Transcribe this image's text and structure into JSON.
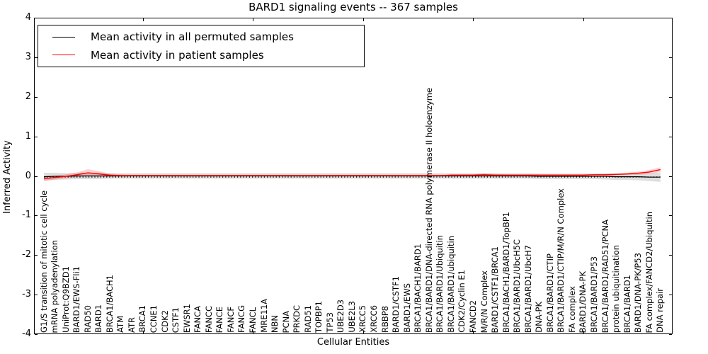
{
  "title": "BARD1 signaling events -- 367 samples",
  "legend": {
    "items": [
      {
        "label": "Mean activity in all permuted samples",
        "color": "#000000"
      },
      {
        "label": "Mean activity in patient samples",
        "color": "#ff0000"
      }
    ]
  },
  "axes": {
    "ylabel": "Inferred Activity",
    "xlabel": "Cellular Entities",
    "yticks": [
      "4",
      "3",
      "2",
      "1",
      "0",
      "-1",
      "-2",
      "-3",
      "-4"
    ],
    "ylim": [
      -4,
      4
    ]
  },
  "colors": {
    "permuted_line": "#000000",
    "patient_line": "#ff0000",
    "permuted_band": "rgba(0,0,0,0.13)",
    "patient_band": "rgba(255,0,0,0.18)",
    "zero_line": "#000000"
  },
  "chart_data": {
    "type": "line",
    "title": "BARD1 signaling events -- 367 samples",
    "xlabel": "Cellular Entities",
    "ylabel": "Inferred Activity",
    "ylim": [
      -4,
      4
    ],
    "grid": false,
    "legend_position": "upper left",
    "zero_reference_line": true,
    "categories": [
      "G1/S transition of mitotic cell cycle",
      "mRNA polyadenylation",
      "UniProt:Q9BZD1",
      "BARD1/EWS-Fli1",
      "RAD50",
      "BARD1",
      "BRCA1/BACH1",
      "ATM",
      "ATR",
      "BRCA1",
      "CCNE1",
      "CDK2",
      "CSTF1",
      "EWSR1",
      "FANCA",
      "FANCC",
      "FANCE",
      "FANCF",
      "FANCG",
      "FANCL",
      "MRE11A",
      "NBN",
      "PCNA",
      "PRKDC",
      "RAD51",
      "TOPBP1",
      "TP53",
      "UBE2D3",
      "UBE2L3",
      "XRCC5",
      "XRCC6",
      "RBBP8",
      "BARD1/CSTF1",
      "BARD1/EWS",
      "BRCA1/BACH1/BARD1",
      "BRCA1/BARD1/DNA-directed RNA polymerase II holoenzyme",
      "BRCA1/BARD1/Ubiquitin",
      "BRCA1/BARD1/ubiquitin",
      "CDK2/Cyclin E1",
      "FANCD2",
      "M/R/N Complex",
      "BARD1/CSTF1/BRCA1",
      "BRCA1/BACH1/BARD1/TopBP1",
      "BRCA1/BARD1/UbcH5C",
      "BRCA1/BARD1/UbcH7",
      "DNA-PK",
      "BRCA1/BARD1/CTIP",
      "BRCA1/BARD1/CTIP/M/R/N Complex",
      "FA complex",
      "BARD1/DNA-PK",
      "BRCA1/BARD1/P53",
      "BRCA1/BARD1/RAD51/PCNA",
      "protein ubiquitination",
      "BRCA1/BARD1",
      "BARD1/DNA-PK/P53",
      "FA complex/FANCD2/Ubiquitin",
      "DNA repair"
    ],
    "series": [
      {
        "name": "Mean activity in all permuted samples",
        "color": "#000000",
        "values": [
          -0.02,
          -0.01,
          -0.01,
          0,
          0,
          0,
          0,
          0,
          0,
          0,
          0,
          0,
          0,
          0,
          0,
          0,
          0,
          0,
          0,
          0,
          0,
          0,
          0,
          0,
          0,
          0,
          0,
          0,
          0,
          0,
          0,
          0,
          0,
          0,
          0,
          0,
          0,
          0,
          0,
          0,
          0,
          0,
          0,
          0,
          0,
          -0.01,
          -0.01,
          -0.01,
          -0.01,
          -0.01,
          -0.01,
          -0.01,
          -0.02,
          -0.02,
          -0.02,
          -0.03,
          -0.03
        ],
        "band_halfwidth": [
          0.1,
          0.09,
          0.08,
          0.08,
          0.08,
          0.08,
          0.07,
          0.07,
          0.07,
          0.07,
          0.07,
          0.07,
          0.07,
          0.07,
          0.07,
          0.07,
          0.07,
          0.07,
          0.07,
          0.07,
          0.07,
          0.07,
          0.07,
          0.07,
          0.07,
          0.07,
          0.07,
          0.07,
          0.07,
          0.07,
          0.07,
          0.07,
          0.07,
          0.07,
          0.07,
          0.07,
          0.07,
          0.07,
          0.07,
          0.07,
          0.07,
          0.07,
          0.07,
          0.07,
          0.07,
          0.07,
          0.07,
          0.07,
          0.07,
          0.07,
          0.07,
          0.08,
          0.08,
          0.08,
          0.09,
          0.1,
          0.12
        ]
      },
      {
        "name": "Mean activity in patient samples",
        "color": "#ff0000",
        "values": [
          -0.07,
          -0.04,
          -0.01,
          0.03,
          0.08,
          0.05,
          0.02,
          0.01,
          0.01,
          0.01,
          0.01,
          0.01,
          0.01,
          0.01,
          0.01,
          0.01,
          0.01,
          0.01,
          0.01,
          0.01,
          0.01,
          0.01,
          0.01,
          0.01,
          0.01,
          0.01,
          0.01,
          0.01,
          0.01,
          0.01,
          0.01,
          0.01,
          0.01,
          0.01,
          0.01,
          0.01,
          0.01,
          0.02,
          0.02,
          0.02,
          0.03,
          0.02,
          0.02,
          0.02,
          0.02,
          0.02,
          0.02,
          0.02,
          0.02,
          0.02,
          0.03,
          0.03,
          0.04,
          0.05,
          0.07,
          0.1,
          0.16
        ],
        "band_halfwidth": [
          0.06,
          0.05,
          0.05,
          0.06,
          0.09,
          0.07,
          0.04,
          0.03,
          0.02,
          0.02,
          0.02,
          0.02,
          0.02,
          0.02,
          0.02,
          0.02,
          0.02,
          0.02,
          0.02,
          0.02,
          0.02,
          0.02,
          0.02,
          0.02,
          0.02,
          0.02,
          0.02,
          0.02,
          0.02,
          0.02,
          0.02,
          0.02,
          0.02,
          0.02,
          0.02,
          0.02,
          0.02,
          0.02,
          0.02,
          0.02,
          0.04,
          0.03,
          0.02,
          0.02,
          0.02,
          0.02,
          0.02,
          0.02,
          0.02,
          0.02,
          0.02,
          0.02,
          0.02,
          0.03,
          0.04,
          0.05,
          0.06
        ]
      }
    ]
  }
}
